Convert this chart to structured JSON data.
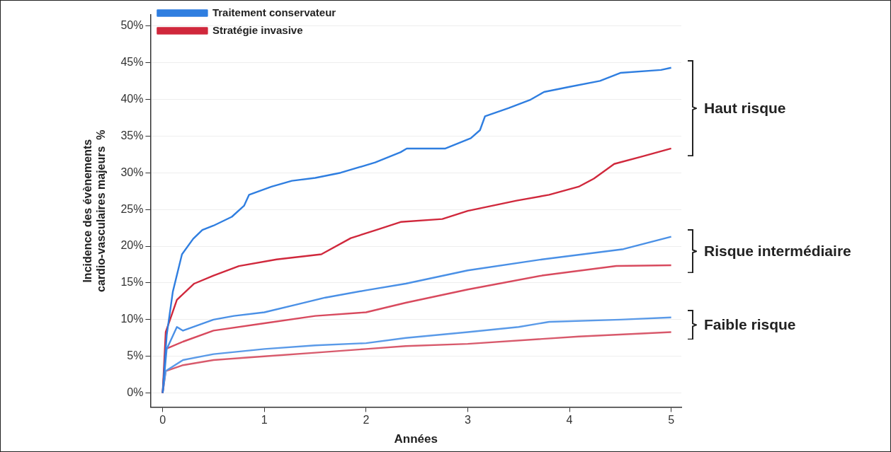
{
  "chart_data": {
    "type": "line",
    "xlabel": "Années",
    "ylabel": "Incidence des évènements cardio-vasculaires majeurs  %",
    "xlim": [
      -0.12,
      5.1
    ],
    "xticks": [
      0,
      1,
      2,
      3,
      4,
      5
    ],
    "ylim": [
      -1.9,
      51.5
    ],
    "yticks": [
      {
        "value": 0,
        "label": "0%"
      },
      {
        "value": 5,
        "label": "5%"
      },
      {
        "value": 10,
        "label": "10%"
      },
      {
        "value": 15,
        "label": "15%"
      },
      {
        "value": 20,
        "label": "20%"
      },
      {
        "value": 25,
        "label": "25%"
      },
      {
        "value": 30,
        "label": "30%"
      },
      {
        "value": 35,
        "label": "35%"
      },
      {
        "value": 40,
        "label": "40%"
      },
      {
        "value": 45,
        "label": "45%"
      },
      {
        "value": 50,
        "label": "50%"
      }
    ],
    "grid": "y",
    "legend": "top left",
    "marker": "none",
    "line_style": "solid",
    "annotations": [
      "Haut risque",
      "Risque intermédiaire",
      "Faible risque"
    ],
    "series": [
      {
        "name": "Traitement conservateur",
        "color": "#2f7ee0",
        "x": [
          0,
          0.04,
          0.1,
          0.19,
          0.3,
          0.39,
          0.5,
          0.68,
          0.8,
          0.85,
          1.07,
          1.27,
          1.5,
          1.75,
          2.09,
          2.34,
          2.4,
          2.78,
          3.03,
          3.12,
          3.17,
          3.4,
          3.61,
          3.75,
          4.0,
          4.3,
          4.5,
          4.9,
          5.0
        ],
        "values": [
          0,
          7.9,
          13.8,
          18.9,
          21,
          22.2,
          22.8,
          24,
          25.5,
          27,
          28.1,
          28.9,
          29.3,
          30,
          31.4,
          32.8,
          33.3,
          33.3,
          34.7,
          35.8,
          37.7,
          38.8,
          39.9,
          41,
          41.7,
          42.5,
          43.6,
          44,
          44.3
        ]
      },
      {
        "name": "Stratégie invasive",
        "color": "#d0283c",
        "x": [
          0,
          0.03,
          0.14,
          0.31,
          0.5,
          0.75,
          1.12,
          1.56,
          1.85,
          2.1,
          2.34,
          2.75,
          3.0,
          3.48,
          3.8,
          4.09,
          4.24,
          4.44,
          4.71,
          5.0
        ],
        "values": [
          0,
          8.3,
          12.7,
          14.9,
          16,
          17.3,
          18.2,
          18.9,
          21.1,
          22.2,
          23.3,
          23.7,
          24.8,
          26.2,
          27,
          28.1,
          29.2,
          31.2,
          32.2,
          33.3
        ]
      },
      {
        "color": "#4a90e6",
        "x": [
          0,
          0.04,
          0.14,
          0.2,
          0.5,
          0.7,
          1.0,
          1.3,
          1.6,
          2.0,
          2.39,
          3.0,
          3.73,
          4.53,
          5.0
        ],
        "values": [
          0,
          6,
          9,
          8.5,
          10,
          10.5,
          11,
          12,
          13,
          14,
          14.9,
          16.7,
          18.2,
          19.6,
          21.3
        ]
      },
      {
        "color": "#d84a5e",
        "x": [
          0,
          0.03,
          0.2,
          0.5,
          1.0,
          1.5,
          2.0,
          2.39,
          3.0,
          3.73,
          4.46,
          5.0
        ],
        "values": [
          0,
          6,
          7,
          8.5,
          9.5,
          10.5,
          11,
          12.3,
          14.1,
          16,
          17.3,
          17.4
        ]
      },
      {
        "color": "#5a9ae8",
        "x": [
          0,
          0.03,
          0.2,
          0.5,
          1.0,
          1.5,
          2.0,
          2.39,
          3.0,
          3.5,
          3.8,
          4.5,
          5.0
        ],
        "values": [
          0,
          3,
          4.5,
          5.3,
          6,
          6.5,
          6.8,
          7.5,
          8.3,
          9,
          9.7,
          10,
          10.3
        ]
      },
      {
        "color": "#d85a6c",
        "x": [
          0,
          0.03,
          0.2,
          0.5,
          1.0,
          1.5,
          2.0,
          2.39,
          3.0,
          4.09,
          5.0
        ],
        "values": [
          0,
          3,
          3.8,
          4.5,
          5,
          5.5,
          6,
          6.4,
          6.7,
          7.7,
          8.3
        ]
      }
    ]
  }
}
